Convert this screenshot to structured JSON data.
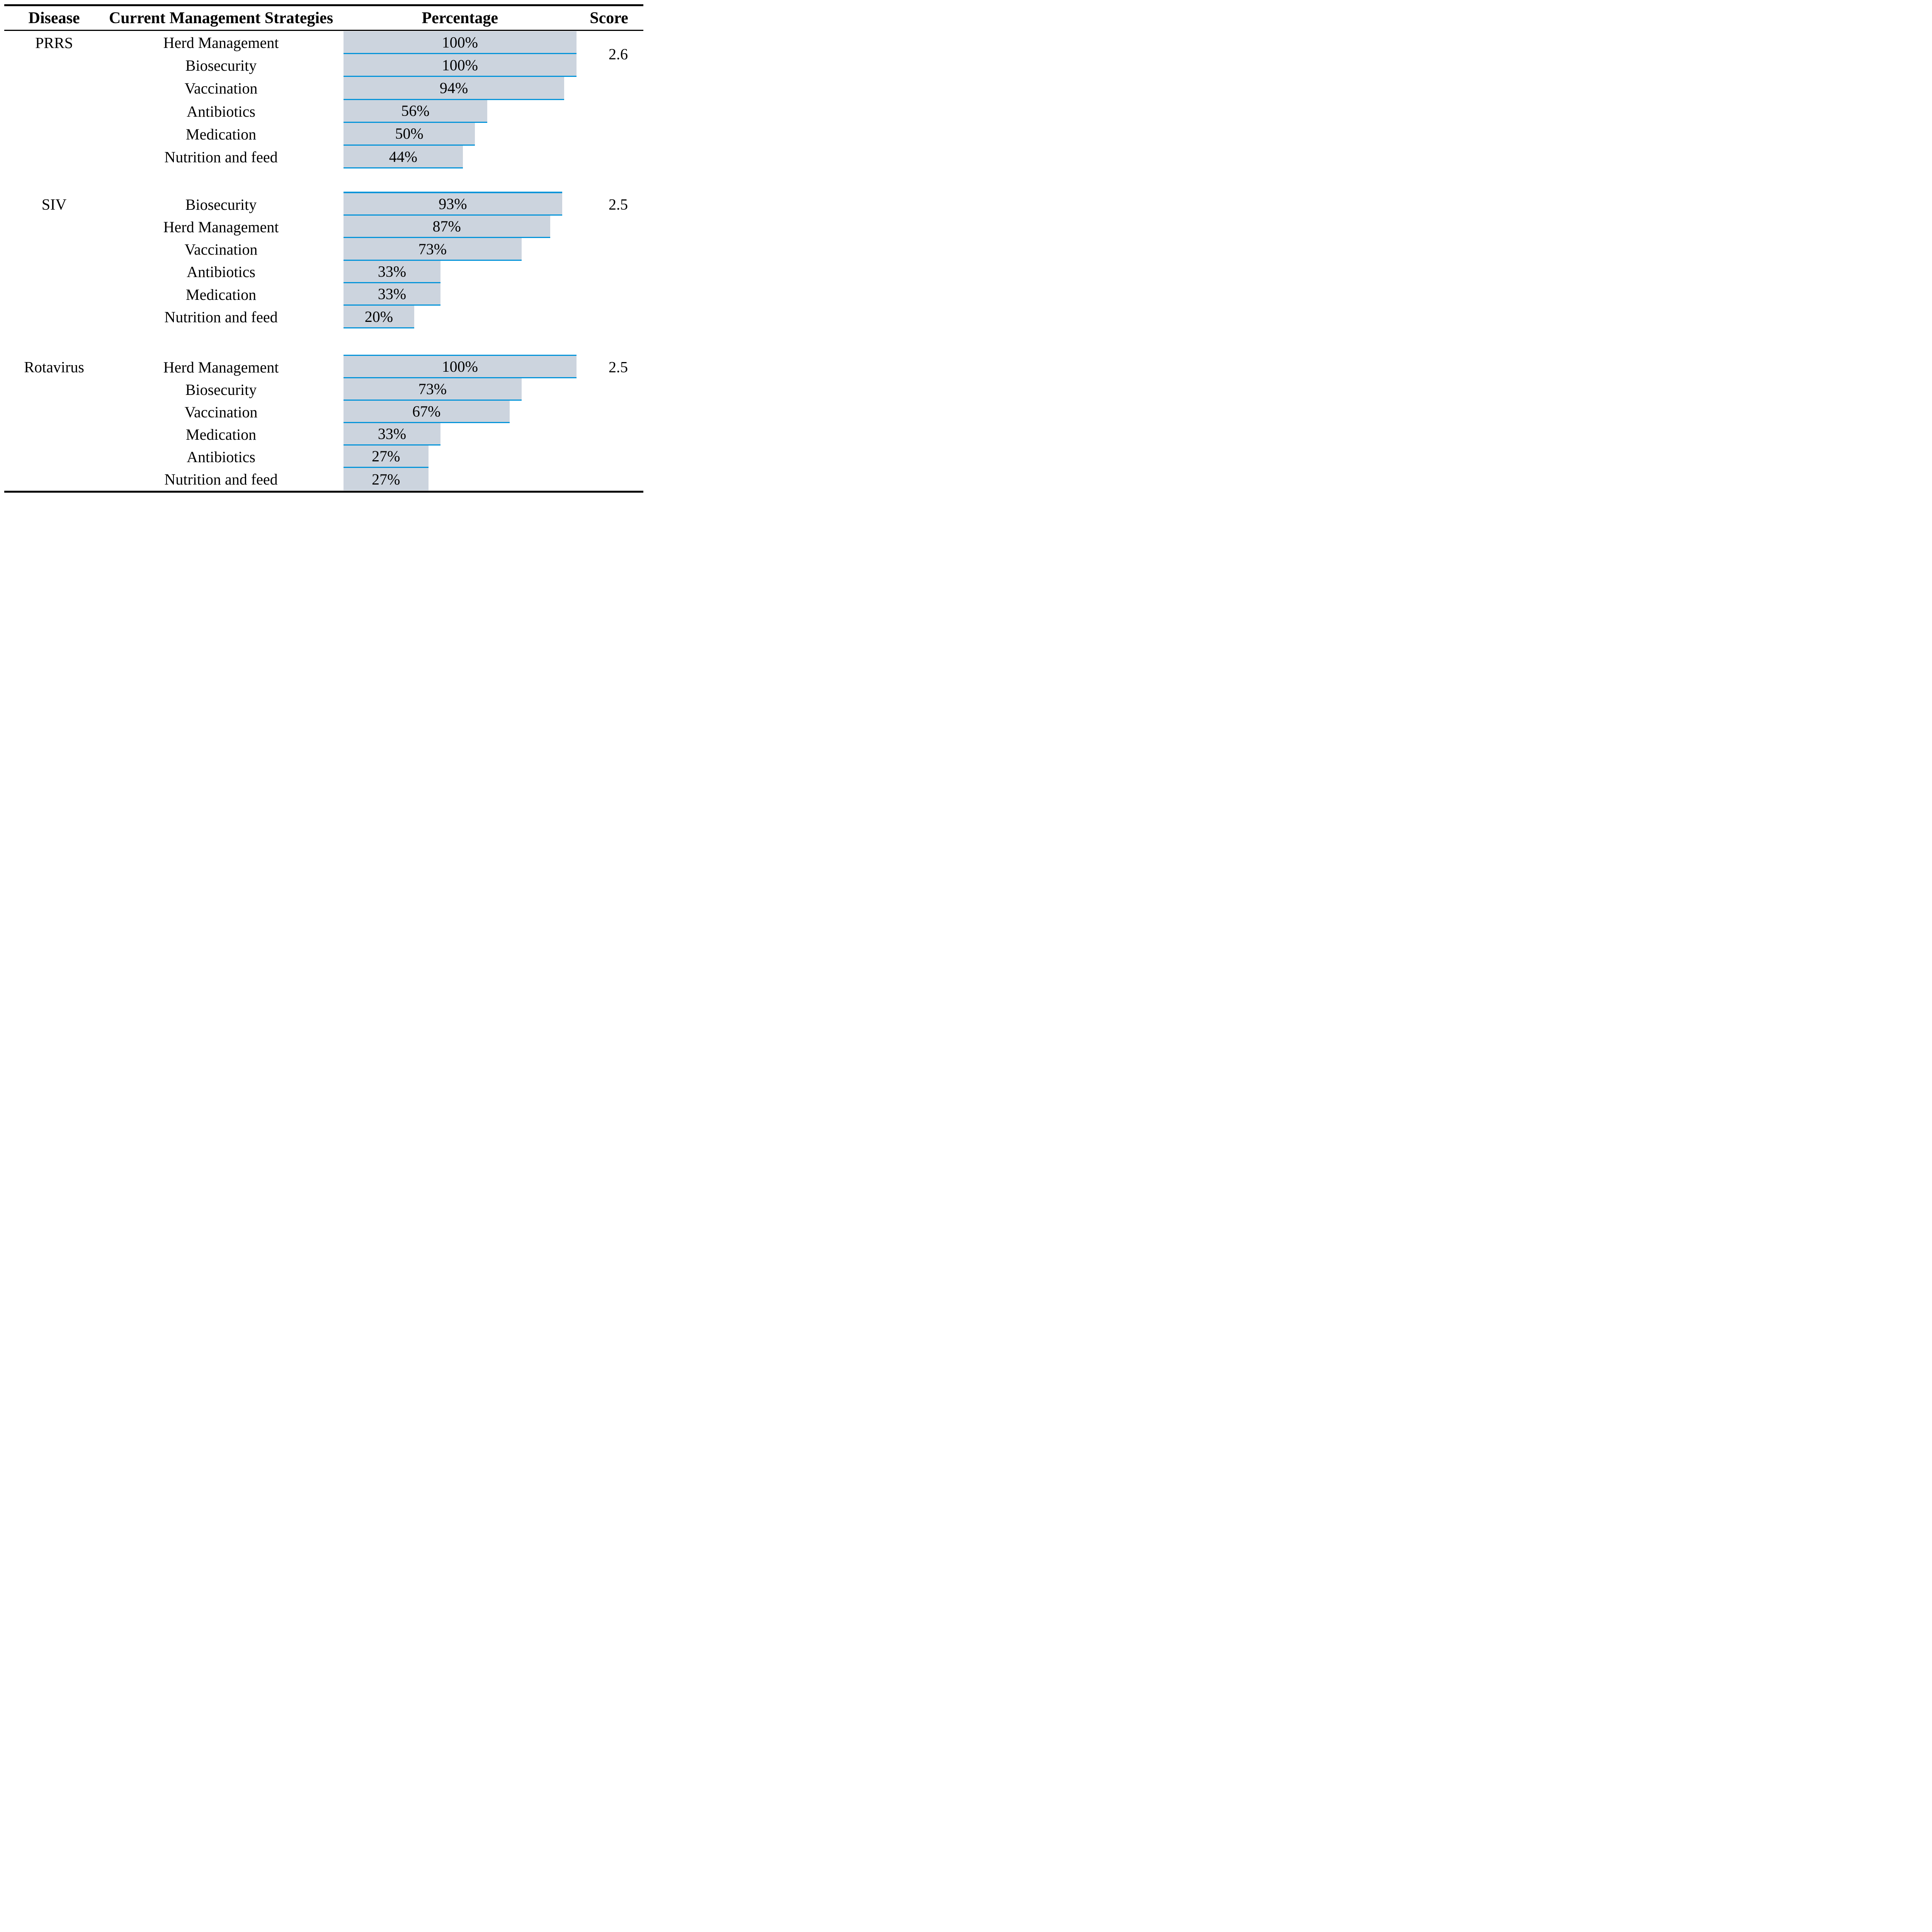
{
  "colors": {
    "background": "#ffffff",
    "text": "#000000",
    "rule": "#000000",
    "bar_fill": "#ccd4de",
    "bar_accent": "#0594d9"
  },
  "header": {
    "disease": "Disease",
    "strategies": "Current Management Strategies",
    "percentage": "Percentage",
    "score": "Score"
  },
  "chart_data": {
    "type": "bar",
    "orientation": "horizontal",
    "unit": "%",
    "value_range": [
      0,
      100
    ],
    "grid": false,
    "legend": "none",
    "groups": [
      {
        "disease": "PRRS",
        "score": "2.6",
        "rows": [
          {
            "strategy": "Herd Management",
            "value": 100,
            "label": "100%"
          },
          {
            "strategy": "Biosecurity",
            "value": 100,
            "label": "100%"
          },
          {
            "strategy": "Vaccination",
            "value": 94,
            "label": "94%"
          },
          {
            "strategy": "Antibiotics",
            "value": 56,
            "label": "56%"
          },
          {
            "strategy": "Medication",
            "value": 50,
            "label": "50%"
          },
          {
            "strategy": "Nutrition and feed",
            "value": 44,
            "label": "44%"
          }
        ]
      },
      {
        "disease": "SIV",
        "score": "2.5",
        "rows": [
          {
            "strategy": "Biosecurity",
            "value": 93,
            "label": "93%"
          },
          {
            "strategy": "Herd Management",
            "value": 87,
            "label": "87%"
          },
          {
            "strategy": "Vaccination",
            "value": 73,
            "label": "73%"
          },
          {
            "strategy": "Antibiotics",
            "value": 33,
            "label": "33%"
          },
          {
            "strategy": "Medication",
            "value": 33,
            "label": "33%"
          },
          {
            "strategy": "Nutrition and feed",
            "value": 20,
            "label": "20%"
          }
        ]
      },
      {
        "disease": "Rotavirus",
        "score": "2.5",
        "rows": [
          {
            "strategy": "Herd Management",
            "value": 100,
            "label": "100%"
          },
          {
            "strategy": "Biosecurity",
            "value": 73,
            "label": "73%"
          },
          {
            "strategy": "Vaccination",
            "value": 67,
            "label": "67%"
          },
          {
            "strategy": "Medication",
            "value": 33,
            "label": "33%"
          },
          {
            "strategy": "Antibiotics",
            "value": 27,
            "label": "27%"
          },
          {
            "strategy": "Nutrition and feed",
            "value": 27,
            "label": "27%"
          }
        ]
      }
    ]
  }
}
